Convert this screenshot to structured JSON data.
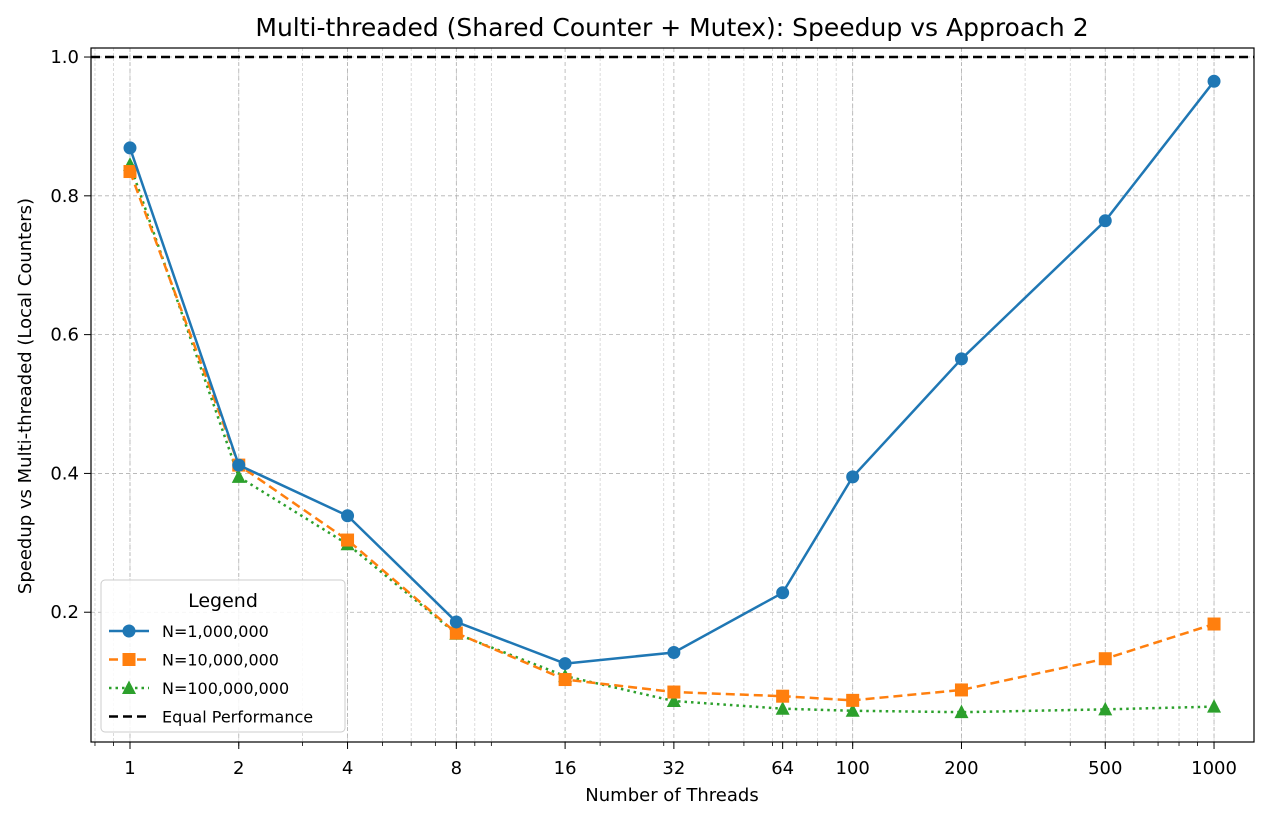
{
  "chart_data": {
    "type": "line",
    "title": "Multi-threaded (Shared Counter + Mutex): Speedup vs Approach 2",
    "xlabel": "Number of Threads",
    "ylabel": "Speedup vs Multi-threaded (Local Counters)",
    "x_scale": "log",
    "x": [
      1,
      2,
      4,
      8,
      16,
      32,
      64,
      100,
      200,
      500,
      1000
    ],
    "x_tick_labels": [
      "1",
      "2",
      "4",
      "8",
      "16",
      "32",
      "64",
      "100",
      "200",
      "500",
      "1000"
    ],
    "y_ticks": [
      0.2,
      0.4,
      0.6,
      0.8,
      1.0
    ],
    "y_tick_labels": [
      "0.2",
      "0.4",
      "0.6",
      "0.8",
      "1.0"
    ],
    "xlim": [
      0.78,
      1290
    ],
    "ylim": [
      0.013,
      1.013
    ],
    "grid": true,
    "legend": {
      "title": "Legend",
      "position": "lower-left"
    },
    "series": [
      {
        "name": "N=1,000,000",
        "color": "#1f77b4",
        "linestyle": "solid",
        "marker": "circle",
        "values": [
          0.869,
          0.412,
          0.339,
          0.186,
          0.126,
          0.142,
          0.228,
          0.395,
          0.565,
          0.764,
          0.965
        ]
      },
      {
        "name": "N=10,000,000",
        "color": "#ff7f0e",
        "linestyle": "dashed",
        "marker": "square",
        "values": [
          0.835,
          0.412,
          0.304,
          0.17,
          0.103,
          0.085,
          0.079,
          0.073,
          0.088,
          0.133,
          0.183
        ]
      },
      {
        "name": "N=100,000,000",
        "color": "#2ca02c",
        "linestyle": "dotted",
        "marker": "triangle",
        "values": [
          0.845,
          0.395,
          0.298,
          0.169,
          0.108,
          0.072,
          0.061,
          0.058,
          0.056,
          0.06,
          0.064
        ]
      }
    ],
    "reference_line": {
      "name": "Equal Performance",
      "y": 1.0,
      "color": "#000000",
      "linestyle": "dashed"
    }
  }
}
